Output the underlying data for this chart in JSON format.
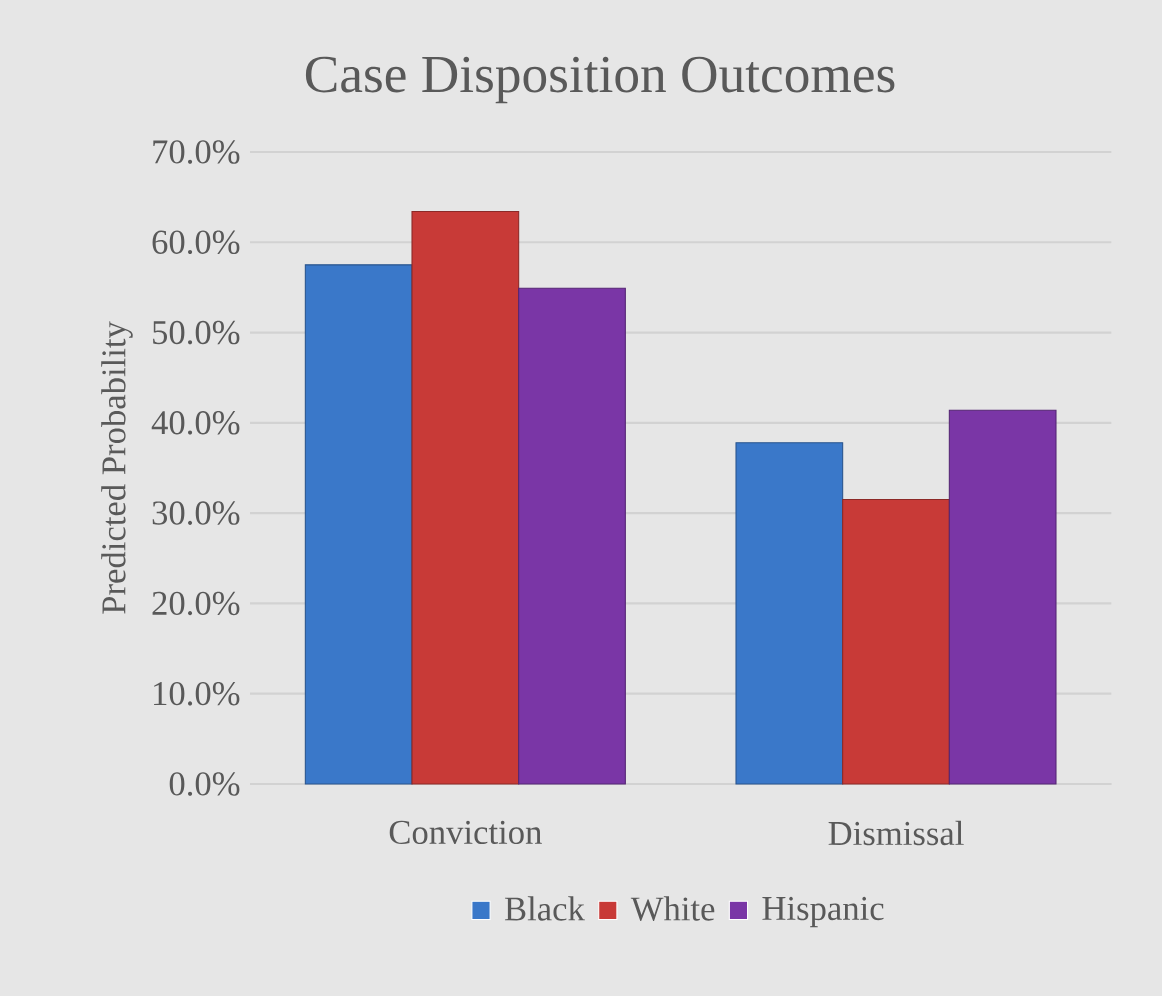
{
  "chart_data": {
    "type": "bar",
    "title": "Case Disposition Outcomes",
    "ylabel": "Predicted Probability",
    "categories": [
      "Conviction",
      "Dismissal"
    ],
    "series": [
      {
        "name": "Black",
        "color": "#3a78c9",
        "values": [
          57.5,
          37.8
        ]
      },
      {
        "name": "White",
        "color": "#c83a37",
        "values": [
          63.4,
          31.5
        ]
      },
      {
        "name": "Hispanic",
        "color": "#7a36a6",
        "values": [
          54.9,
          41.4
        ]
      }
    ],
    "ylim": [
      0,
      70
    ],
    "yticks": [
      {
        "value": 0,
        "label": "0.0%"
      },
      {
        "value": 10,
        "label": "10.0%"
      },
      {
        "value": 20,
        "label": "20.0%"
      },
      {
        "value": 30,
        "label": "30.0%"
      },
      {
        "value": 40,
        "label": "40.0%"
      },
      {
        "value": 50,
        "label": "50.0%"
      },
      {
        "value": 60,
        "label": "60.0%"
      },
      {
        "value": 70,
        "label": "70.0%"
      }
    ],
    "grid": "y",
    "legend": "bottom"
  }
}
